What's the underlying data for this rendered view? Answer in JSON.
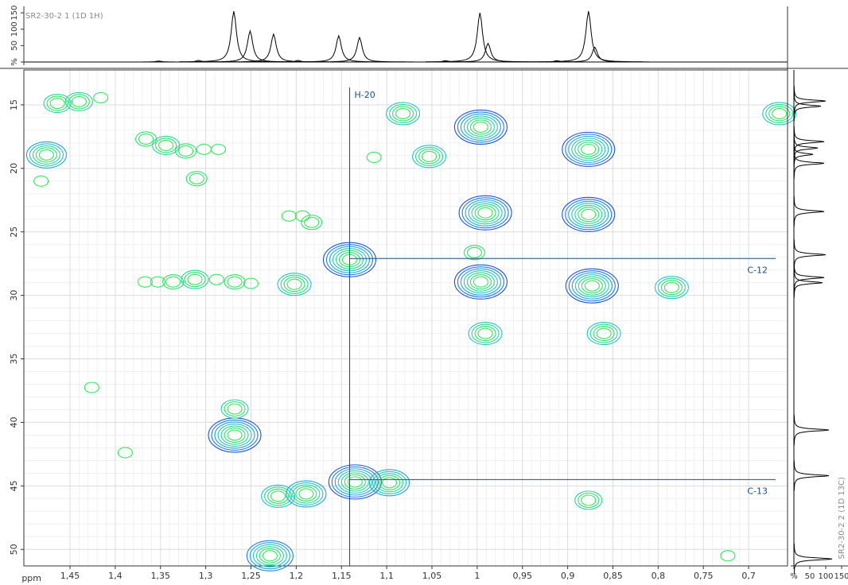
{
  "chart_data": {
    "type": "contour",
    "axis_label": "ppm",
    "x": [
      1.464,
      1.44,
      1.416,
      1.476,
      1.482,
      1.366,
      1.344,
      1.322,
      1.302,
      1.286,
      1.31,
      1.367,
      1.353,
      1.336,
      1.312,
      1.288,
      1.268,
      1.25,
      1.202,
      1.208,
      1.193,
      1.183,
      1.141,
      1.114,
      1.082,
      1.053,
      0.996,
      0.991,
      0.996,
      1.003,
      0.877,
      0.877,
      0.873,
      0.86,
      0.991,
      0.666,
      0.785,
      1.268,
      1.268,
      1.135,
      1.097,
      1.22,
      1.189,
      1.229,
      0.877,
      0.723,
      1.426,
      1.389
    ],
    "values": [
      14.88,
      14.75,
      14.44,
      18.94,
      21.0,
      17.69,
      18.19,
      18.63,
      18.5,
      18.5,
      20.81,
      28.94,
      28.94,
      28.94,
      28.75,
      28.75,
      28.94,
      29.06,
      29.13,
      23.75,
      23.75,
      24.25,
      27.19,
      19.13,
      15.69,
      19.06,
      16.75,
      23.5,
      28.94,
      26.63,
      18.5,
      23.63,
      29.25,
      33.0,
      33.0,
      15.69,
      29.38,
      41.0,
      38.94,
      44.69,
      44.75,
      45.81,
      45.63,
      50.5,
      46.13,
      50.5,
      37.25,
      42.38
    ],
    "intensity": [
      3,
      3,
      1,
      5,
      1,
      2,
      3,
      2,
      1,
      1,
      2,
      1,
      1,
      2,
      3,
      1,
      2,
      1,
      4,
      1,
      1,
      2,
      7,
      1,
      4,
      4,
      7,
      7,
      7,
      2,
      7,
      7,
      7,
      4,
      4,
      4,
      4,
      7,
      3,
      7,
      5,
      4,
      5,
      6,
      3,
      1,
      1,
      1
    ],
    "xlim": [
      1.501,
      0.657
    ],
    "ylim": [
      12.25,
      51.3
    ],
    "xticks": [
      {
        "value": 1.45,
        "label": "1,45"
      },
      {
        "value": 1.4,
        "label": "1,4"
      },
      {
        "value": 1.35,
        "label": "1,35"
      },
      {
        "value": 1.3,
        "label": "1,3"
      },
      {
        "value": 1.25,
        "label": "1,25"
      },
      {
        "value": 1.2,
        "label": "1,2"
      },
      {
        "value": 1.15,
        "label": "1,15"
      },
      {
        "value": 1.1,
        "label": "1,1"
      },
      {
        "value": 1.05,
        "label": "1,05"
      },
      1,
      {
        "value": 0.95,
        "label": "0,95"
      },
      {
        "value": 0.9,
        "label": "0,9"
      },
      {
        "value": 0.85,
        "label": "0,85"
      },
      {
        "value": 0.8,
        "label": "0,8"
      },
      {
        "value": 0.75,
        "label": "0,75"
      },
      {
        "value": 0.7,
        "label": "0,7"
      }
    ],
    "yticks": [
      15,
      20,
      25,
      30,
      35,
      40,
      45,
      50
    ],
    "grid": true,
    "annotations": [
      {
        "text": "H-20",
        "x": 1.141
      },
      {
        "text": "C-12",
        "y": 27.1
      },
      {
        "text": "C-13",
        "y": 44.5
      }
    ],
    "top_projection": {
      "title": "SR2-30-2 1 (1D 1H)",
      "x": [
        1.269,
        1.251,
        1.225,
        1.153,
        1.13,
        0.997,
        0.988,
        0.877,
        0.87,
        1.308,
        1.352,
        1.198,
        1.035,
        0.912
      ],
      "values": [
        155,
        95,
        85,
        80,
        75,
        150,
        57,
        155,
        45,
        5,
        3,
        5,
        4,
        4
      ],
      "ylim": [
        0,
        160
      ],
      "yticks": [
        {
          "value": 0,
          "label": "%"
        },
        50,
        100,
        150
      ]
    },
    "right_projection": {
      "title": "SR2-30-2 2 (1D 13C)",
      "x": [
        14.7,
        15.1,
        17.9,
        18.4,
        18.9,
        19.6,
        23.4,
        26.8,
        28.6,
        29.0,
        40.6,
        44.2,
        50.75
      ],
      "values": [
        100,
        85,
        95,
        75,
        60,
        95,
        95,
        100,
        95,
        90,
        110,
        110,
        120
      ],
      "xlim": [
        0,
        160
      ],
      "xticks": [
        {
          "value": 0,
          "label": "%"
        },
        50,
        100,
        150
      ]
    }
  }
}
